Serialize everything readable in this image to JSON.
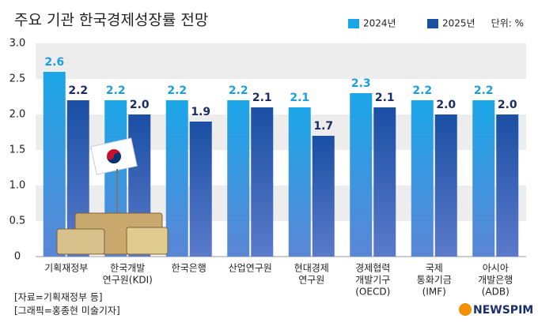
{
  "chart_data": {
    "type": "bar",
    "title": "주요 기관 한국경제성장률 전망",
    "unit_label": "단위: %",
    "categories": [
      [
        "기획재정부"
      ],
      [
        "한국개발",
        "연구원(KDI)"
      ],
      [
        "한국은행"
      ],
      [
        "산업연구원"
      ],
      [
        "현대경제",
        "연구원"
      ],
      [
        "경제협력",
        "개발기구",
        "(OECD)"
      ],
      [
        "국제",
        "통화기금",
        "(IMF)"
      ],
      [
        "아시아",
        "개발은행",
        "(ADB)"
      ]
    ],
    "series": [
      {
        "name": "2024년",
        "color": "#1ba6e8",
        "label_color": "#1a9fe0",
        "values": [
          2.6,
          2.2,
          2.2,
          2.2,
          2.1,
          2.3,
          2.2,
          2.2
        ],
        "value_labels": [
          "2.6",
          "2.2",
          "2.2",
          "2.2",
          "2.1",
          "2.3",
          "2.2",
          "2.2"
        ]
      },
      {
        "name": "2025년",
        "color": "#1a4fa3",
        "label_color": "#1b2c66",
        "values": [
          2.2,
          2.0,
          1.9,
          2.1,
          1.7,
          2.1,
          2.0,
          2.0
        ],
        "value_labels": [
          "2.2",
          "2.0",
          "1.9",
          "2.1",
          "1.7",
          "2.1",
          "2.0",
          "2.0"
        ]
      }
    ],
    "ylim": [
      0,
      3
    ],
    "yticks": [
      0,
      0.5,
      {
        "value": 1,
        "label": "1.0"
      },
      1.5,
      {
        "value": 2,
        "label": "2.0"
      },
      2.5,
      {
        "value": 3,
        "label": "3.0"
      }
    ],
    "grid_bands": true,
    "footnotes": [
      "[자료=기획재정부 등]",
      "[그래픽=홍종현 미술기자]"
    ],
    "logo": "NEWSPIM"
  }
}
